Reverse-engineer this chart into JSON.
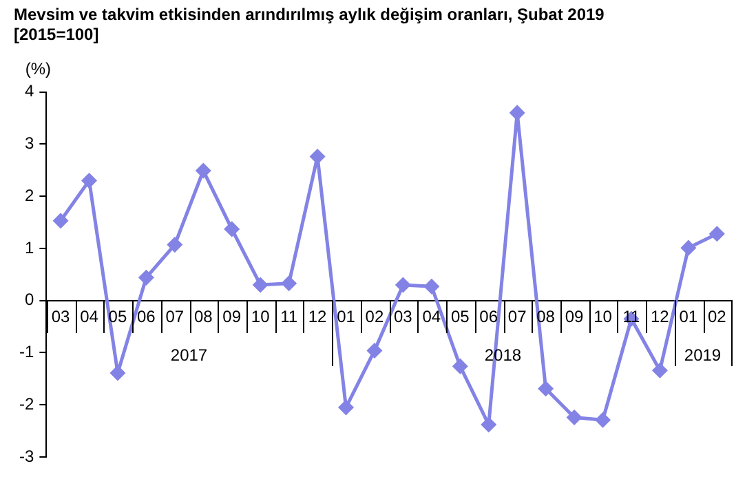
{
  "chart_data": {
    "type": "line",
    "title": "Mevsim ve takvim etkisinden arındırılmış aylık değişim oranları, Şubat 2019",
    "subtitle": "[2015=100]",
    "ylabel": "(%)",
    "categories": [
      "03",
      "04",
      "05",
      "06",
      "07",
      "08",
      "09",
      "10",
      "11",
      "12",
      "01",
      "02",
      "03",
      "04",
      "05",
      "06",
      "07",
      "08",
      "09",
      "10",
      "11",
      "12",
      "01",
      "02"
    ],
    "series": [
      {
        "color": "#8383e6",
        "values": [
          1.53,
          2.3,
          -1.39,
          0.44,
          1.07,
          2.49,
          1.37,
          0.3,
          0.33,
          2.76,
          -2.05,
          -0.96,
          0.3,
          0.27,
          -1.26,
          -2.38,
          3.6,
          -1.69,
          -2.24,
          -2.29,
          -0.35,
          -1.34,
          1.01,
          1.28
        ]
      }
    ],
    "annotations": [
      "2017",
      "2018",
      "2019"
    ],
    "ylim": [
      -3,
      4
    ],
    "yticks": [
      -3,
      -2,
      -1,
      0,
      1,
      2,
      3,
      4
    ],
    "grid": false,
    "legend": false,
    "marker": "diamond",
    "line_style": "solid"
  }
}
